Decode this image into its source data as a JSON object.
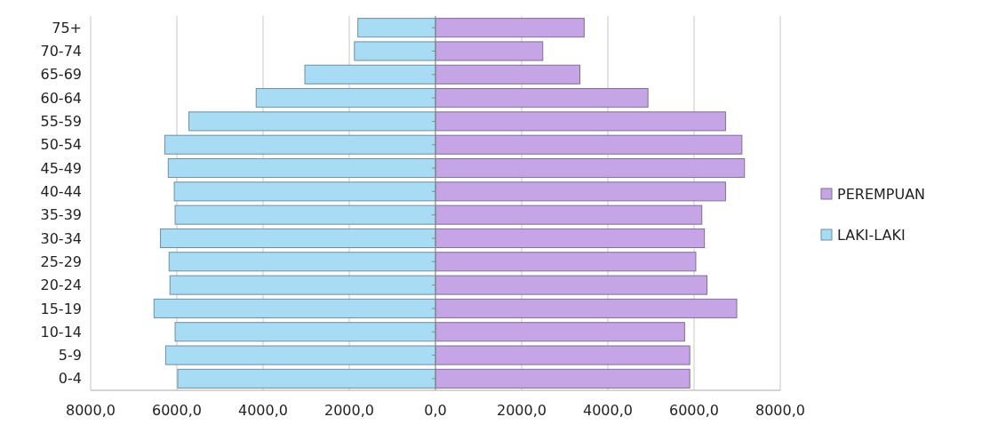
{
  "chart_data": {
    "type": "bar",
    "orientation": "horizontal",
    "stacked": true,
    "categories": [
      "75+",
      "70-74",
      "65-69",
      "60-64",
      "55-59",
      "50-54",
      "45-49",
      "40-44",
      "35-39",
      "30-34",
      "25-29",
      "20-24",
      "15-19",
      "10-14",
      "5-9",
      "0-4"
    ],
    "series": [
      {
        "name": "PEREMPUAN",
        "color": "#c6a5e6",
        "values": [
          3450,
          2490,
          3350,
          4930,
          6730,
          7110,
          7170,
          6730,
          6180,
          6240,
          6040,
          6300,
          6990,
          5780,
          5900,
          5900
        ]
      },
      {
        "name": "LAKI-LAKI",
        "color": "#a8dcf4",
        "values": [
          -1800,
          -1880,
          -3030,
          -4160,
          -5720,
          -6280,
          -6200,
          -6060,
          -6040,
          -6380,
          -6180,
          -6160,
          -6530,
          -6040,
          -6260,
          -5980
        ]
      }
    ],
    "xlim": [
      -8000,
      8000
    ],
    "xticks": [
      {
        "value": -8000,
        "label": "8000,0"
      },
      {
        "value": -6000,
        "label": "6000,0"
      },
      {
        "value": -4000,
        "label": "4000,0"
      },
      {
        "value": -2000,
        "label": "2000,0"
      },
      {
        "value": 0,
        "label": "0,0"
      },
      {
        "value": 2000,
        "label": "2000,0"
      },
      {
        "value": 4000,
        "label": "4000,0"
      },
      {
        "value": 6000,
        "label": "6000,0"
      },
      {
        "value": 8000,
        "label": "8000,0"
      }
    ],
    "grid": "x",
    "legend": "right"
  }
}
